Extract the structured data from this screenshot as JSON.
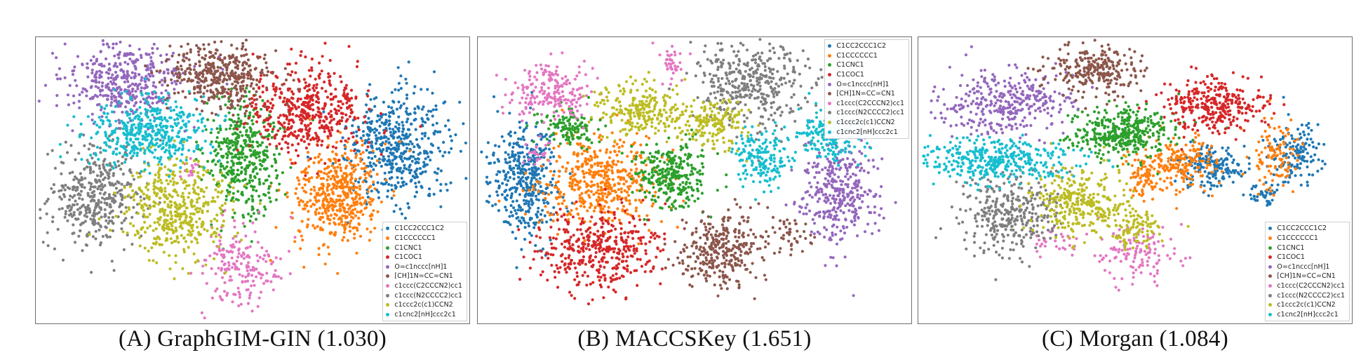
{
  "chart_data": [
    {
      "type": "scatter",
      "caption": "(A)  GraphGIM-GIN  (1.030)",
      "legend_placement": "lower-right",
      "grid": false,
      "series": [
        {
          "name": "C1CC2CCC1C2",
          "color": "#1f77b4",
          "clusters": [
            {
              "x": 0.84,
              "y": 0.38,
              "sx": 0.06,
              "sy": 0.1,
              "n": 500
            }
          ]
        },
        {
          "name": "C1CCCCCC1",
          "color": "#ff7f0e",
          "clusters": [
            {
              "x": 0.7,
              "y": 0.55,
              "sx": 0.05,
              "sy": 0.09,
              "n": 480
            }
          ]
        },
        {
          "name": "C1CNC1",
          "color": "#2ca02c",
          "clusters": [
            {
              "x": 0.48,
              "y": 0.42,
              "sx": 0.045,
              "sy": 0.1,
              "n": 440
            }
          ]
        },
        {
          "name": "C1COC1",
          "color": "#d62728",
          "clusters": [
            {
              "x": 0.63,
              "y": 0.25,
              "sx": 0.07,
              "sy": 0.08,
              "n": 480
            }
          ]
        },
        {
          "name": "O=c1nccc[nH]1",
          "color": "#9467bd",
          "clusters": [
            {
              "x": 0.2,
              "y": 0.15,
              "sx": 0.07,
              "sy": 0.07,
              "n": 420
            }
          ]
        },
        {
          "name": "[CH]1N=CC=CN1",
          "color": "#8c564b",
          "clusters": [
            {
              "x": 0.42,
              "y": 0.12,
              "sx": 0.065,
              "sy": 0.06,
              "n": 400
            }
          ]
        },
        {
          "name": "c1ccc(C2CCCN2)cc1",
          "color": "#e377c2",
          "clusters": [
            {
              "x": 0.47,
              "y": 0.82,
              "sx": 0.05,
              "sy": 0.06,
              "n": 190
            },
            {
              "x": 0.35,
              "y": 0.46,
              "sx": 0.015,
              "sy": 0.015,
              "n": 15
            }
          ]
        },
        {
          "name": "c1ccc(N2CCCC2)cc1",
          "color": "#7f7f7f",
          "clusters": [
            {
              "x": 0.13,
              "y": 0.56,
              "sx": 0.055,
              "sy": 0.09,
              "n": 400
            }
          ]
        },
        {
          "name": "c1ccc2c(c1)CCN2",
          "color": "#bcbd22",
          "clusters": [
            {
              "x": 0.32,
              "y": 0.6,
              "sx": 0.06,
              "sy": 0.09,
              "n": 460
            }
          ]
        },
        {
          "name": "c1cnc2[nH]ccc2c1",
          "color": "#17becf",
          "clusters": [
            {
              "x": 0.25,
              "y": 0.33,
              "sx": 0.07,
              "sy": 0.06,
              "n": 440
            }
          ]
        }
      ]
    },
    {
      "type": "scatter",
      "caption": "(B)  MACCSKey  (1.651)",
      "legend_placement": "upper-right",
      "grid": false,
      "series": [
        {
          "name": "C1CC2CCC1C2",
          "color": "#1f77b4",
          "clusters": [
            {
              "x": 0.1,
              "y": 0.5,
              "sx": 0.04,
              "sy": 0.1,
              "n": 420
            }
          ]
        },
        {
          "name": "C1CCCCCC1",
          "color": "#ff7f0e",
          "clusters": [
            {
              "x": 0.27,
              "y": 0.5,
              "sx": 0.07,
              "sy": 0.08,
              "n": 480
            }
          ]
        },
        {
          "name": "C1CNC1",
          "color": "#2ca02c",
          "clusters": [
            {
              "x": 0.45,
              "y": 0.48,
              "sx": 0.045,
              "sy": 0.06,
              "n": 300
            },
            {
              "x": 0.2,
              "y": 0.31,
              "sx": 0.035,
              "sy": 0.035,
              "n": 120
            }
          ]
        },
        {
          "name": "C1COC1",
          "color": "#d62728",
          "clusters": [
            {
              "x": 0.27,
              "y": 0.75,
              "sx": 0.07,
              "sy": 0.07,
              "n": 420
            }
          ]
        },
        {
          "name": "O=c1nccc[nH]1",
          "color": "#9467bd",
          "clusters": [
            {
              "x": 0.84,
              "y": 0.55,
              "sx": 0.045,
              "sy": 0.09,
              "n": 360
            }
          ]
        },
        {
          "name": "[CH]1N=CC=CN1",
          "color": "#8c564b",
          "clusters": [
            {
              "x": 0.56,
              "y": 0.75,
              "sx": 0.05,
              "sy": 0.07,
              "n": 320
            },
            {
              "x": 0.73,
              "y": 0.7,
              "sx": 0.02,
              "sy": 0.03,
              "n": 40
            }
          ]
        },
        {
          "name": "c1ccc(C2CCCN2)cc1",
          "color": "#e377c2",
          "clusters": [
            {
              "x": 0.16,
              "y": 0.18,
              "sx": 0.05,
              "sy": 0.05,
              "n": 200
            },
            {
              "x": 0.45,
              "y": 0.08,
              "sx": 0.015,
              "sy": 0.03,
              "n": 40
            },
            {
              "x": 0.13,
              "y": 0.4,
              "sx": 0.015,
              "sy": 0.02,
              "n": 25
            }
          ]
        },
        {
          "name": "c1ccc(N2CCCC2)cc1",
          "color": "#7f7f7f",
          "clusters": [
            {
              "x": 0.64,
              "y": 0.15,
              "sx": 0.065,
              "sy": 0.07,
              "n": 380
            }
          ]
        },
        {
          "name": "c1ccc2c(c1)CCN2",
          "color": "#bcbd22",
          "clusters": [
            {
              "x": 0.38,
              "y": 0.25,
              "sx": 0.06,
              "sy": 0.05,
              "n": 260
            },
            {
              "x": 0.55,
              "y": 0.29,
              "sx": 0.035,
              "sy": 0.04,
              "n": 160
            }
          ]
        },
        {
          "name": "c1cnc2[nH]ccc2c1",
          "color": "#17becf",
          "clusters": [
            {
              "x": 0.66,
              "y": 0.42,
              "sx": 0.035,
              "sy": 0.05,
              "n": 170
            },
            {
              "x": 0.82,
              "y": 0.33,
              "sx": 0.04,
              "sy": 0.05,
              "n": 200
            }
          ]
        }
      ]
    },
    {
      "type": "scatter",
      "caption": "(C)  Morgan  (1.084)",
      "legend_placement": "lower-right",
      "grid": false,
      "series": [
        {
          "name": "C1CC2CCC1C2",
          "color": "#1f77b4",
          "clusters": [
            {
              "x": 0.68,
              "y": 0.45,
              "sx": 0.04,
              "sy": 0.04,
              "n": 180
            },
            {
              "x": 0.88,
              "y": 0.4,
              "sx": 0.03,
              "sy": 0.06,
              "n": 140
            },
            {
              "x": 0.8,
              "y": 0.55,
              "sx": 0.02,
              "sy": 0.02,
              "n": 40
            }
          ]
        },
        {
          "name": "C1CCCCCC1",
          "color": "#ff7f0e",
          "clusters": [
            {
              "x": 0.6,
              "y": 0.44,
              "sx": 0.045,
              "sy": 0.05,
              "n": 200
            },
            {
              "x": 0.82,
              "y": 0.42,
              "sx": 0.03,
              "sy": 0.06,
              "n": 110
            },
            {
              "x": 0.52,
              "y": 0.48,
              "sx": 0.02,
              "sy": 0.04,
              "n": 60
            }
          ]
        },
        {
          "name": "C1CNC1",
          "color": "#2ca02c",
          "clusters": [
            {
              "x": 0.47,
              "y": 0.33,
              "sx": 0.06,
              "sy": 0.045,
              "n": 380
            }
          ]
        },
        {
          "name": "C1COC1",
          "color": "#d62728",
          "clusters": [
            {
              "x": 0.69,
              "y": 0.23,
              "sx": 0.06,
              "sy": 0.05,
              "n": 320
            }
          ]
        },
        {
          "name": "O=c1nccc[nH]1",
          "color": "#9467bd",
          "clusters": [
            {
              "x": 0.2,
              "y": 0.22,
              "sx": 0.07,
              "sy": 0.06,
              "n": 340
            }
          ]
        },
        {
          "name": "[CH]1N=CC=CN1",
          "color": "#8c564b",
          "clusters": [
            {
              "x": 0.41,
              "y": 0.1,
              "sx": 0.055,
              "sy": 0.05,
              "n": 260
            }
          ]
        },
        {
          "name": "c1ccc(C2CCCN2)cc1",
          "color": "#e377c2",
          "clusters": [
            {
              "x": 0.5,
              "y": 0.76,
              "sx": 0.05,
              "sy": 0.05,
              "n": 120
            },
            {
              "x": 0.31,
              "y": 0.72,
              "sx": 0.03,
              "sy": 0.03,
              "n": 30
            }
          ]
        },
        {
          "name": "c1ccc(N2CCCC2)cc1",
          "color": "#7f7f7f",
          "clusters": [
            {
              "x": 0.21,
              "y": 0.62,
              "sx": 0.06,
              "sy": 0.07,
              "n": 340
            }
          ]
        },
        {
          "name": "c1ccc2c(c1)CCN2",
          "color": "#bcbd22",
          "clusters": [
            {
              "x": 0.37,
              "y": 0.58,
              "sx": 0.05,
              "sy": 0.06,
              "n": 300
            },
            {
              "x": 0.5,
              "y": 0.67,
              "sx": 0.03,
              "sy": 0.04,
              "n": 100
            }
          ]
        },
        {
          "name": "c1cnc2[nH]ccc2c1",
          "color": "#17becf",
          "clusters": [
            {
              "x": 0.18,
              "y": 0.43,
              "sx": 0.09,
              "sy": 0.04,
              "n": 380
            }
          ]
        }
      ]
    }
  ]
}
